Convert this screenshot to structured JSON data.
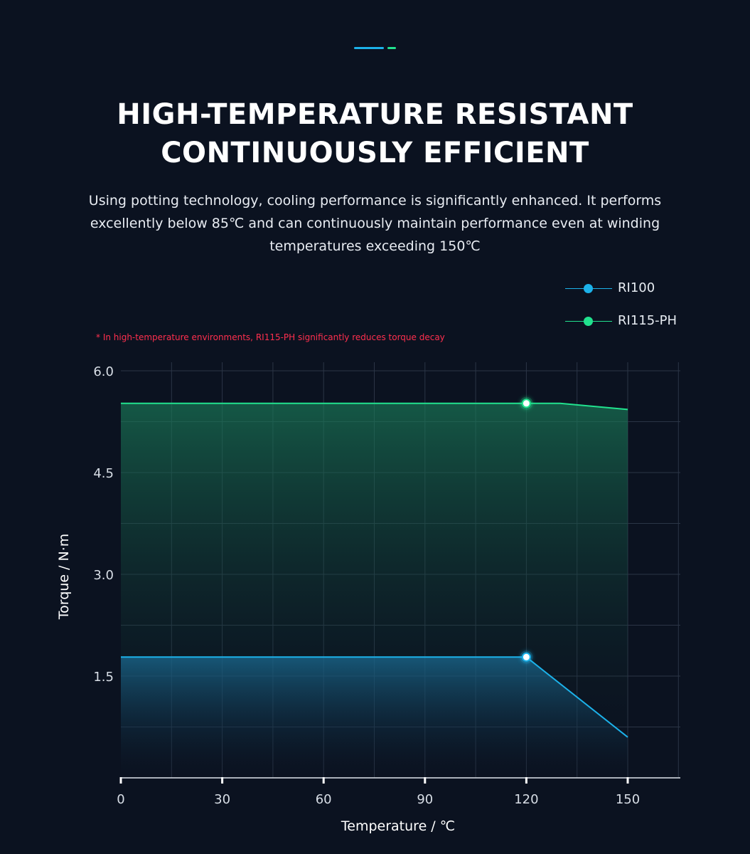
{
  "colors": {
    "background": "#0b1220",
    "accent_blue": "#1cb2ea",
    "accent_green": "#21e28e",
    "note_red": "#ff2f4e"
  },
  "header": {
    "title_line1": "HIGH-TEMPERATURE RESISTANT",
    "title_line2": "CONTINUOUSLY EFFICIENT",
    "subtitle": "Using potting technology, cooling performance is significantly enhanced. It performs excellently below 85℃ and can continuously maintain performance even at winding temperatures exceeding 150℃"
  },
  "note": "* In high-temperature environments, RI115-PH significantly reduces torque decay",
  "chart_data": {
    "type": "area",
    "xlabel": "Temperature / ℃",
    "ylabel": "Torque / N·m",
    "xlim": [
      0,
      165
    ],
    "ylim": [
      0,
      6.0
    ],
    "xticks": [
      0,
      30,
      60,
      90,
      120,
      150
    ],
    "yticks": [
      1.5,
      3.0,
      4.5,
      6.0
    ],
    "x_tick_labels": [
      "0",
      "30",
      "60",
      "90",
      "120",
      "150"
    ],
    "y_tick_labels": [
      "1.5",
      "3.0",
      "4.5",
      "6.0"
    ],
    "grid": true,
    "legend_position": "top-right",
    "series": [
      {
        "name": "RI100",
        "color": "#1cb2ea",
        "x": [
          0,
          120,
          150
        ],
        "values": [
          1.78,
          1.78,
          0.6
        ],
        "marker_x": 120
      },
      {
        "name": "RI115-PH",
        "color": "#21e28e",
        "x": [
          0,
          120,
          130,
          150
        ],
        "values": [
          5.52,
          5.52,
          5.52,
          5.43
        ],
        "marker_x": 120
      }
    ]
  }
}
